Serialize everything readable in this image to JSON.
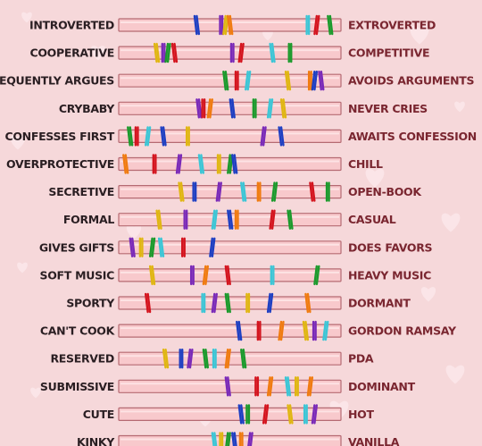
{
  "title": "",
  "chart_data": {
    "type": "scatter",
    "title": "",
    "xlabel": "",
    "ylabel": "",
    "xlim": [
      0,
      100
    ],
    "grid": false,
    "legend": "none",
    "colors": [
      "#1e3fc2",
      "#7a2ab8",
      "#e0b612",
      "#f07b10",
      "#d4141e",
      "#1b9a2c",
      "#3cc6d6"
    ],
    "rows": [
      {
        "left": "INTROVERTED",
        "right": "EXTROVERTED",
        "marks": [
          {
            "x": 35,
            "c": 0
          },
          {
            "x": 46,
            "c": 1
          },
          {
            "x": 48,
            "c": 2
          },
          {
            "x": 50,
            "c": 3
          },
          {
            "x": 85,
            "c": 6
          },
          {
            "x": 89,
            "c": 4
          },
          {
            "x": 95,
            "c": 5
          }
        ]
      },
      {
        "left": "COOPERATIVE",
        "right": "COMPETITIVE",
        "marks": [
          {
            "x": 17,
            "c": 2
          },
          {
            "x": 20,
            "c": 1
          },
          {
            "x": 22,
            "c": 5
          },
          {
            "x": 25,
            "c": 4
          },
          {
            "x": 51,
            "c": 1
          },
          {
            "x": 55,
            "c": 4
          },
          {
            "x": 69,
            "c": 6
          },
          {
            "x": 77,
            "c": 5
          }
        ]
      },
      {
        "left": "FREQUENTLY ARGUES",
        "right": "AVOIDS ARGUMENTS",
        "marks": [
          {
            "x": 48,
            "c": 5
          },
          {
            "x": 53,
            "c": 4
          },
          {
            "x": 58,
            "c": 6
          },
          {
            "x": 76,
            "c": 2
          },
          {
            "x": 86,
            "c": 3
          },
          {
            "x": 88,
            "c": 0
          },
          {
            "x": 91,
            "c": 1
          }
        ]
      },
      {
        "left": "CRYBABY",
        "right": "NEVER CRIES",
        "marks": [
          {
            "x": 36,
            "c": 1
          },
          {
            "x": 38,
            "c": 4
          },
          {
            "x": 41,
            "c": 3
          },
          {
            "x": 51,
            "c": 0
          },
          {
            "x": 61,
            "c": 5
          },
          {
            "x": 68,
            "c": 6
          },
          {
            "x": 74,
            "c": 2
          }
        ]
      },
      {
        "left": "CONFESSES FIRST",
        "right": "AWAITS CONFESSION",
        "marks": [
          {
            "x": 5,
            "c": 5
          },
          {
            "x": 8,
            "c": 4
          },
          {
            "x": 13,
            "c": 6
          },
          {
            "x": 20,
            "c": 0
          },
          {
            "x": 31,
            "c": 2
          },
          {
            "x": 65,
            "c": 1
          },
          {
            "x": 73,
            "c": 0
          }
        ]
      },
      {
        "left": "OVERPROTECTIVE",
        "right": "CHILL",
        "marks": [
          {
            "x": 3,
            "c": 3
          },
          {
            "x": 16,
            "c": 4
          },
          {
            "x": 27,
            "c": 1
          },
          {
            "x": 37,
            "c": 6
          },
          {
            "x": 45,
            "c": 2
          },
          {
            "x": 50,
            "c": 5
          },
          {
            "x": 52,
            "c": 0
          }
        ]
      },
      {
        "left": "SECRETIVE",
        "right": "OPEN-BOOK",
        "marks": [
          {
            "x": 28,
            "c": 2
          },
          {
            "x": 34,
            "c": 0
          },
          {
            "x": 45,
            "c": 1
          },
          {
            "x": 56,
            "c": 6
          },
          {
            "x": 63,
            "c": 3
          },
          {
            "x": 70,
            "c": 5
          },
          {
            "x": 87,
            "c": 4
          },
          {
            "x": 94,
            "c": 5
          }
        ]
      },
      {
        "left": "FORMAL",
        "right": "CASUAL",
        "marks": [
          {
            "x": 18,
            "c": 2
          },
          {
            "x": 30,
            "c": 1
          },
          {
            "x": 43,
            "c": 6
          },
          {
            "x": 50,
            "c": 0
          },
          {
            "x": 53,
            "c": 3
          },
          {
            "x": 69,
            "c": 4
          },
          {
            "x": 77,
            "c": 5
          }
        ]
      },
      {
        "left": "GIVES GIFTS",
        "right": "DOES FAVORS",
        "marks": [
          {
            "x": 6,
            "c": 1
          },
          {
            "x": 10,
            "c": 2
          },
          {
            "x": 15,
            "c": 5
          },
          {
            "x": 19,
            "c": 6
          },
          {
            "x": 29,
            "c": 4
          },
          {
            "x": 42,
            "c": 0
          }
        ]
      },
      {
        "left": "SOFT MUSIC",
        "right": "HEAVY MUSIC",
        "marks": [
          {
            "x": 15,
            "c": 2
          },
          {
            "x": 33,
            "c": 1
          },
          {
            "x": 39,
            "c": 3
          },
          {
            "x": 49,
            "c": 4
          },
          {
            "x": 69,
            "c": 6
          },
          {
            "x": 89,
            "c": 5
          }
        ]
      },
      {
        "left": "SPORTY",
        "right": "DORMANT",
        "marks": [
          {
            "x": 13,
            "c": 4
          },
          {
            "x": 38,
            "c": 6
          },
          {
            "x": 43,
            "c": 1
          },
          {
            "x": 49,
            "c": 5
          },
          {
            "x": 58,
            "c": 2
          },
          {
            "x": 68,
            "c": 0
          },
          {
            "x": 85,
            "c": 3
          }
        ]
      },
      {
        "left": "CAN'T COOK",
        "right": "GORDON RAMSAY",
        "marks": [
          {
            "x": 54,
            "c": 0
          },
          {
            "x": 63,
            "c": 4
          },
          {
            "x": 73,
            "c": 3
          },
          {
            "x": 84,
            "c": 2
          },
          {
            "x": 88,
            "c": 1
          },
          {
            "x": 93,
            "c": 6
          }
        ]
      },
      {
        "left": "RESERVED",
        "right": "PDA",
        "marks": [
          {
            "x": 21,
            "c": 2
          },
          {
            "x": 28,
            "c": 0
          },
          {
            "x": 32,
            "c": 1
          },
          {
            "x": 39,
            "c": 5
          },
          {
            "x": 43,
            "c": 6
          },
          {
            "x": 49,
            "c": 3
          },
          {
            "x": 56,
            "c": 5
          }
        ]
      },
      {
        "left": "SUBMISSIVE",
        "right": "DOMINANT",
        "marks": [
          {
            "x": 49,
            "c": 1
          },
          {
            "x": 62,
            "c": 4
          },
          {
            "x": 68,
            "c": 3
          },
          {
            "x": 76,
            "c": 6
          },
          {
            "x": 80,
            "c": 2
          },
          {
            "x": 86,
            "c": 3
          }
        ]
      },
      {
        "left": "CUTE",
        "right": "HOT",
        "marks": [
          {
            "x": 55,
            "c": 0
          },
          {
            "x": 58,
            "c": 5
          },
          {
            "x": 66,
            "c": 4
          },
          {
            "x": 77,
            "c": 2
          },
          {
            "x": 84,
            "c": 6
          },
          {
            "x": 88,
            "c": 1
          }
        ]
      },
      {
        "left": "KINKY",
        "right": "VANILLA",
        "marks": [
          {
            "x": 43,
            "c": 6
          },
          {
            "x": 46,
            "c": 2
          },
          {
            "x": 49,
            "c": 5
          },
          {
            "x": 52,
            "c": 0
          },
          {
            "x": 55,
            "c": 3
          },
          {
            "x": 59,
            "c": 1
          }
        ]
      }
    ]
  }
}
